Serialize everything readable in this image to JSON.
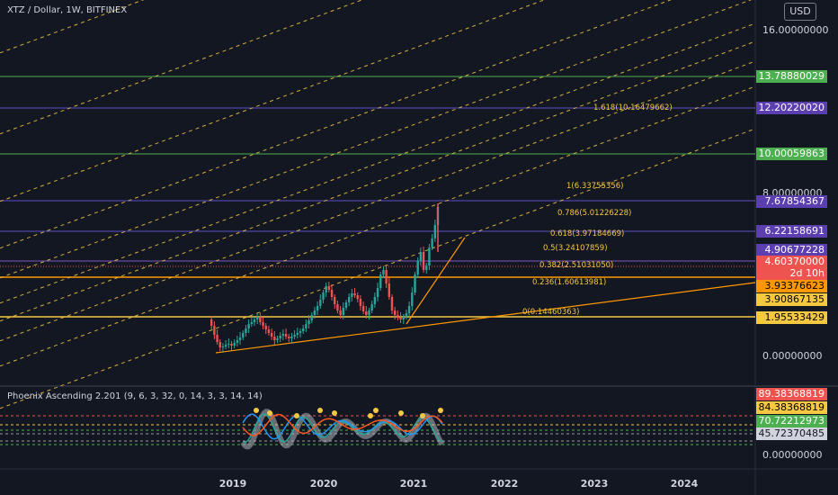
{
  "header": {
    "symbol_line": "XTZ / Dollar, 1W, BITFINEX"
  },
  "currency_button": "USD",
  "indicator": {
    "title": "Phoenix Ascending 2.201 (9, 6, 3, 32, 0, 14, 3, 3, 14, 14)"
  },
  "colors": {
    "background": "#131722",
    "up": "#26a69a",
    "down": "#ef5350",
    "fib": "#f5c842",
    "green_line": "#4caf50",
    "purple_line": "#7e57c2",
    "orange": "#ff9800"
  },
  "chart_data": [
    {
      "type": "candlestick",
      "x_axis_labels": [
        "2019",
        "2020",
        "2021",
        "2022",
        "2023",
        "2024"
      ],
      "y_axis_labels": [
        "16.00000000",
        "8.00000000",
        "0.00000000"
      ],
      "price_tags": [
        {
          "label": "13.78880029",
          "style": "green"
        },
        {
          "label": "12.20220020",
          "style": "purple"
        },
        {
          "label": "10.00059863",
          "style": "green"
        },
        {
          "label": "7.67854367",
          "style": "purple"
        },
        {
          "label": "6.22158691",
          "style": "purple"
        },
        {
          "label": "4.90677228",
          "style": "purple"
        },
        {
          "label": "4.60370000",
          "style": "red"
        },
        {
          "label": "2d 10h",
          "style": "red"
        },
        {
          "label": "3.93376623",
          "style": "orange"
        },
        {
          "label": "3.90867135",
          "style": "yellow"
        },
        {
          "label": "1.95533429",
          "style": "yellow"
        }
      ],
      "fib_levels": [
        {
          "label": "1.618(10.16479662)"
        },
        {
          "label": "1(6.33755356)"
        },
        {
          "label": "0.786(5.01226228)"
        },
        {
          "label": "0.618(3.97184669)"
        },
        {
          "label": "0.5(3.24107859)"
        },
        {
          "label": "0.382(2.51031050)"
        },
        {
          "label": "0.236(1.60613981)"
        },
        {
          "label": "0(0.14460363)"
        }
      ]
    },
    {
      "type": "line",
      "title": "Phoenix Ascending 2.201 (9, 6, 3, 32, 0, 14, 3, 3, 14, 14)",
      "y_axis_labels": [
        "0.00000000"
      ],
      "value_tags": [
        {
          "label": "89.38368819",
          "style": "red"
        },
        {
          "label": "84.38368819",
          "style": "yellow"
        },
        {
          "label": "70.72212973",
          "style": "green"
        },
        {
          "label": "45.72370485",
          "style": "gray"
        }
      ]
    }
  ]
}
